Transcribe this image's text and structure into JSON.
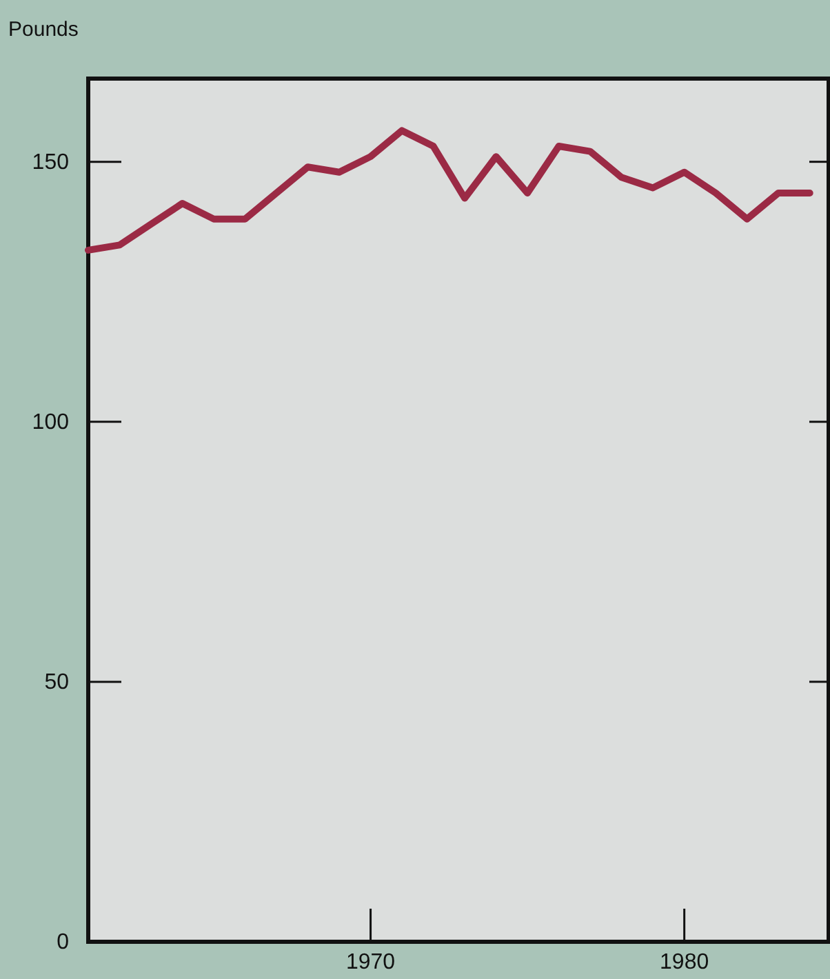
{
  "chart_data": {
    "type": "line",
    "ylabel": "Pounds",
    "x": [
      1961,
      1962,
      1963,
      1964,
      1965,
      1966,
      1967,
      1968,
      1969,
      1970,
      1971,
      1972,
      1973,
      1974,
      1975,
      1976,
      1977,
      1978,
      1979,
      1980,
      1981,
      1982,
      1983,
      1984
    ],
    "series": [
      {
        "color": "#9b2a45",
        "values": [
          133,
          134,
          138,
          142,
          139,
          139,
          144,
          149,
          148,
          151,
          156,
          153,
          143,
          151,
          144,
          153,
          152,
          147,
          145,
          148,
          144,
          139,
          144,
          144
        ]
      }
    ],
    "xlim": [
      1961,
      1984.6
    ],
    "xticks": [
      1970,
      1980
    ],
    "ylim": [
      0,
      166
    ],
    "yticks": [
      0,
      50,
      100,
      150
    ],
    "grid": false,
    "marker": "none",
    "line_style": "solid"
  }
}
